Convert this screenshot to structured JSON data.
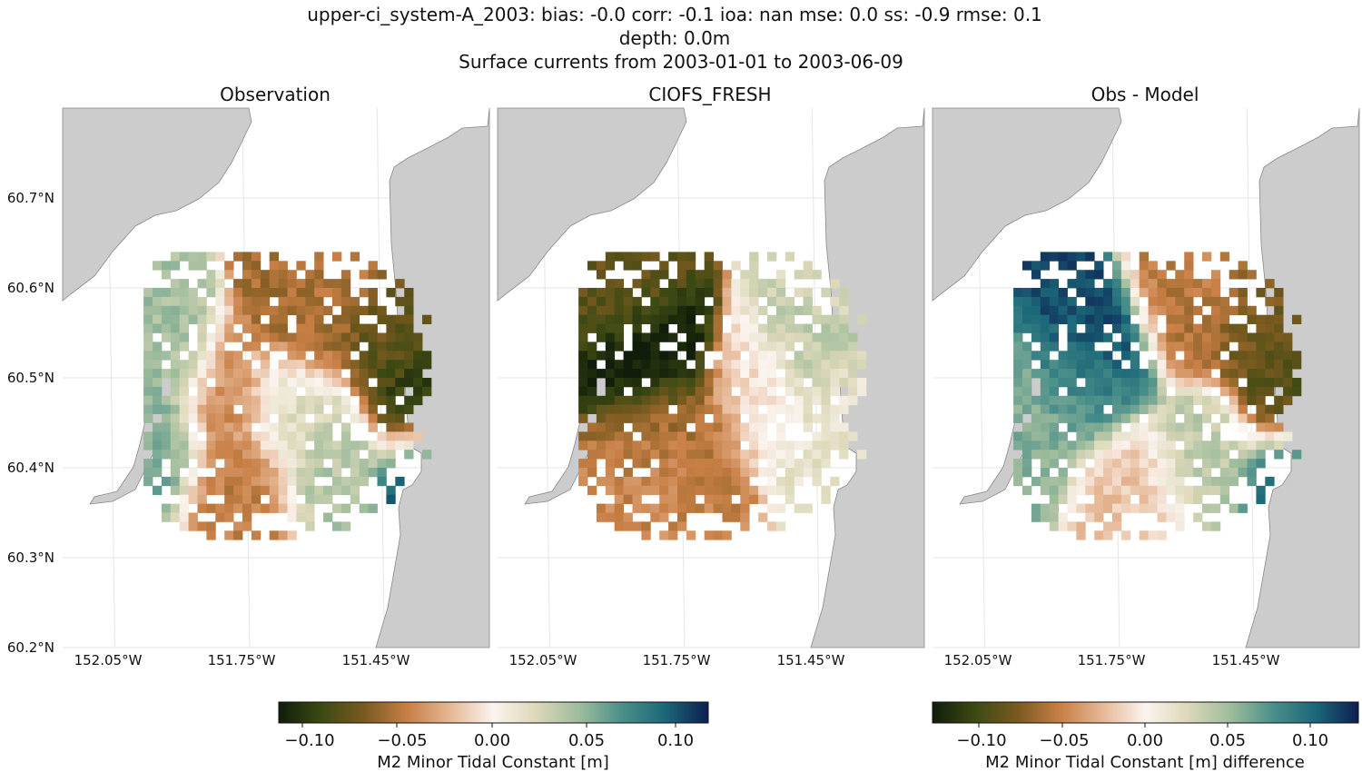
{
  "header": {
    "line1": "upper-ci_system-A_2003: bias: -0.0  corr: -0.1  ioa: nan  mse: 0.0  ss: -0.9  rmse: 0.1",
    "line2": "depth: 0.0m",
    "line3": "Surface currents from 2003-01-01 to 2003-06-09"
  },
  "axes": {
    "lat_ticks": [
      "60.7°N",
      "60.6°N",
      "60.5°N",
      "60.4°N",
      "60.3°N",
      "60.2°N"
    ],
    "lon_ticks": [
      "152.05°W",
      "151.75°W",
      "151.45°W"
    ]
  },
  "colors": {
    "land": "#cccccc",
    "coast": "#888888",
    "grid": "#e6e6e6",
    "cmap": [
      "#0f1d0a",
      "#3d4a13",
      "#7a5a1f",
      "#c87f45",
      "#e6b896",
      "#fbf4ef",
      "#dcd8b8",
      "#9ebc9c",
      "#4a8f8a",
      "#1b6778",
      "#0d1f52"
    ]
  },
  "colorbars": [
    {
      "label": "M2 Minor Tidal Constant [m]",
      "ticks": [
        "−0.10",
        "−0.05",
        "0.00",
        "0.05",
        "0.10"
      ]
    },
    {
      "label": "M2 Minor Tidal Constant [m] difference",
      "ticks": [
        "−0.10",
        "−0.05",
        "0.00",
        "0.05",
        "0.10"
      ]
    }
  ],
  "chart_data": [
    {
      "type": "heatmap",
      "title": "Observation",
      "xlabel": "",
      "ylabel": "",
      "x_ticks": [
        "152.05°W",
        "151.75°W",
        "151.45°W"
      ],
      "y_ticks": [
        "60.7°N",
        "60.6°N",
        "60.5°N",
        "60.4°N",
        "60.3°N",
        "60.2°N"
      ],
      "color_range": [
        -0.12,
        0.12
      ],
      "grid": true,
      "blobs": [
        {
          "lon": -151.35,
          "lat": 60.47,
          "value": -0.11
        },
        {
          "lon": -151.42,
          "lat": 60.55,
          "value": -0.08
        },
        {
          "lon": -151.6,
          "lat": 60.57,
          "value": -0.06
        },
        {
          "lon": -151.55,
          "lat": 60.63,
          "value": -0.05
        },
        {
          "lon": -151.78,
          "lat": 60.47,
          "value": -0.045
        },
        {
          "lon": -151.75,
          "lat": 60.38,
          "value": -0.05
        },
        {
          "lon": -151.65,
          "lat": 60.46,
          "value": 0.02
        },
        {
          "lon": -151.95,
          "lat": 60.43,
          "value": 0.06
        },
        {
          "lon": -151.93,
          "lat": 60.52,
          "value": 0.045
        },
        {
          "lon": -151.33,
          "lat": 60.39,
          "value": 0.12
        },
        {
          "lon": -151.55,
          "lat": 60.4,
          "value": 0.04
        }
      ]
    },
    {
      "type": "heatmap",
      "title": "CIOFS_FRESH",
      "xlabel": "",
      "ylabel": "",
      "x_ticks": [
        "152.05°W",
        "151.75°W",
        "151.45°W"
      ],
      "y_ticks": [
        "60.7°N",
        "60.6°N",
        "60.5°N",
        "60.4°N",
        "60.3°N",
        "60.2°N"
      ],
      "color_range": [
        -0.12,
        0.12
      ],
      "grid": true,
      "blobs": [
        {
          "lon": -151.78,
          "lat": 60.53,
          "value": -0.13
        },
        {
          "lon": -151.82,
          "lat": 60.6,
          "value": -0.08
        },
        {
          "lon": -151.75,
          "lat": 60.45,
          "value": -0.06
        },
        {
          "lon": -151.76,
          "lat": 60.39,
          "value": -0.045
        },
        {
          "lon": -151.58,
          "lat": 60.5,
          "value": -0.01
        },
        {
          "lon": -151.48,
          "lat": 60.55,
          "value": 0.04
        },
        {
          "lon": -151.4,
          "lat": 60.45,
          "value": 0.015
        },
        {
          "lon": -151.45,
          "lat": 60.62,
          "value": 0.02
        }
      ]
    },
    {
      "type": "heatmap",
      "title": "Obs - Model",
      "xlabel": "",
      "ylabel": "",
      "x_ticks": [
        "152.05°W",
        "151.75°W",
        "151.45°W"
      ],
      "y_ticks": [
        "60.7°N",
        "60.6°N",
        "60.5°N",
        "60.4°N",
        "60.3°N",
        "60.2°N"
      ],
      "color_range": [
        -0.13,
        0.13
      ],
      "grid": true,
      "blobs": [
        {
          "lon": -151.78,
          "lat": 60.53,
          "value": 0.12
        },
        {
          "lon": -151.8,
          "lat": 60.49,
          "value": 0.07
        },
        {
          "lon": -151.35,
          "lat": 60.48,
          "value": -0.1
        },
        {
          "lon": -151.42,
          "lat": 60.56,
          "value": -0.08
        },
        {
          "lon": -151.58,
          "lat": 60.58,
          "value": -0.06
        },
        {
          "lon": -151.55,
          "lat": 60.63,
          "value": -0.05
        },
        {
          "lon": -151.7,
          "lat": 60.38,
          "value": -0.02
        },
        {
          "lon": -151.96,
          "lat": 60.44,
          "value": 0.06
        },
        {
          "lon": -151.33,
          "lat": 60.39,
          "value": 0.12
        },
        {
          "lon": -151.55,
          "lat": 60.41,
          "value": 0.04
        }
      ]
    }
  ]
}
